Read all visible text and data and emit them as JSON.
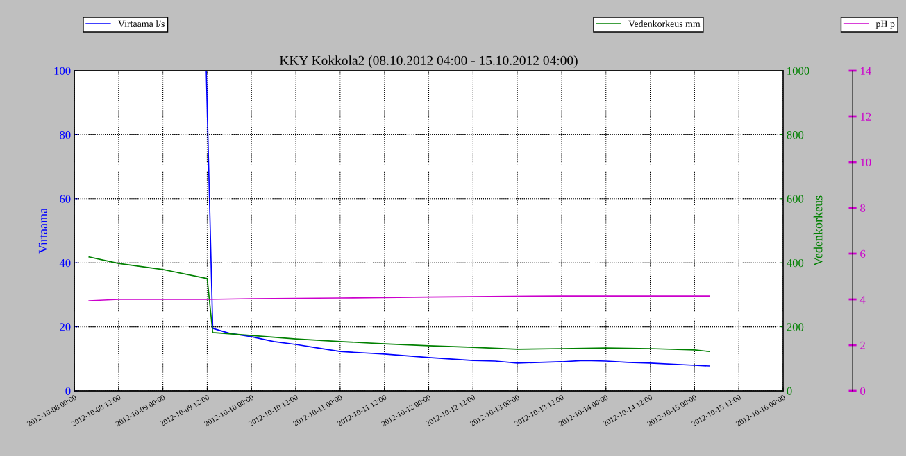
{
  "chart_data": {
    "type": "line",
    "title": "KKY Kokkola2 (08.10.2012 04:00 - 15.10.2012 04:00)",
    "ylabel": "Virtaama",
    "y2label": "Vedenkorkeus",
    "xlim": [
      "2012-10-08T00:00",
      "2012-10-16T00:00"
    ],
    "xticks": [
      {
        "value": "2012-10-08T00:00",
        "label": "2012-10-08 00:00"
      },
      {
        "value": "2012-10-08T12:00",
        "label": "2012-10-08 12:00"
      },
      {
        "value": "2012-10-09T00:00",
        "label": "2012-10-09 00:00"
      },
      {
        "value": "2012-10-09T12:00",
        "label": "2012-10-09 12:00"
      },
      {
        "value": "2012-10-10T00:00",
        "label": "2012-10-10 00:00"
      },
      {
        "value": "2012-10-10T12:00",
        "label": "2012-10-10 12:00"
      },
      {
        "value": "2012-10-11T00:00",
        "label": "2012-10-11 00:00"
      },
      {
        "value": "2012-10-11T12:00",
        "label": "2012-10-11 12:00"
      },
      {
        "value": "2012-10-12T00:00",
        "label": "2012-10-12 00:00"
      },
      {
        "value": "2012-10-12T12:00",
        "label": "2012-10-12 12:00"
      },
      {
        "value": "2012-10-13T00:00",
        "label": "2012-10-13 00:00"
      },
      {
        "value": "2012-10-13T12:00",
        "label": "2012-10-13 12:00"
      },
      {
        "value": "2012-10-14T00:00",
        "label": "2012-10-14 00:00"
      },
      {
        "value": "2012-10-14T12:00",
        "label": "2012-10-14 12:00"
      },
      {
        "value": "2012-10-15T00:00",
        "label": "2012-10-15 00:00"
      },
      {
        "value": "2012-10-15T12:00",
        "label": "2012-10-15 12:00"
      },
      {
        "value": "2012-10-16T00:00",
        "label": "2012-10-16 00:00"
      }
    ],
    "ylim": [
      0,
      100
    ],
    "yticks": [
      0,
      20,
      40,
      60,
      80,
      100
    ],
    "y2lim": [
      0,
      1000
    ],
    "y2ticks": [
      0,
      200,
      400,
      600,
      800,
      1000
    ],
    "y3lim": [
      0,
      14
    ],
    "y3ticks": [
      0,
      2,
      4,
      6,
      8,
      10,
      12,
      14
    ],
    "grid": true,
    "legend": "top",
    "line_style": "solid",
    "series": [
      {
        "name": "Virtaama l/s",
        "color": "#0000ff",
        "axis": "y",
        "x": [
          "2012-10-09T11:45",
          "2012-10-09T13:30",
          "2012-10-09T18:00",
          "2012-10-10T00:00",
          "2012-10-10T06:00",
          "2012-10-10T12:00",
          "2012-10-10T18:00",
          "2012-10-11T00:00",
          "2012-10-11T12:00",
          "2012-10-12T00:00",
          "2012-10-12T12:00",
          "2012-10-12T18:00",
          "2012-10-13T00:00",
          "2012-10-13T12:00",
          "2012-10-13T18:00",
          "2012-10-14T00:00",
          "2012-10-14T06:00",
          "2012-10-14T12:00",
          "2012-10-15T00:00",
          "2012-10-15T04:00"
        ],
        "values": [
          100,
          19.5,
          18.0,
          16.9,
          15.4,
          14.5,
          13.4,
          12.3,
          11.5,
          10.4,
          9.5,
          9.3,
          8.7,
          9.1,
          9.5,
          9.3,
          8.9,
          8.7,
          8.0,
          7.8
        ]
      },
      {
        "name": "Vedenkorkeus mm",
        "color": "#008000",
        "axis": "y2",
        "x": [
          "2012-10-08T04:00",
          "2012-10-08T12:00",
          "2012-10-09T00:00",
          "2012-10-09T12:00",
          "2012-10-09T13:30",
          "2012-10-10T00:00",
          "2012-10-10T12:00",
          "2012-10-11T00:00",
          "2012-10-11T12:00",
          "2012-10-12T00:00",
          "2012-10-12T12:00",
          "2012-10-13T00:00",
          "2012-10-13T12:00",
          "2012-10-14T00:00",
          "2012-10-14T12:00",
          "2012-10-15T00:00",
          "2012-10-15T04:00"
        ],
        "values": [
          418,
          398,
          379,
          351,
          182,
          173,
          162,
          154,
          147,
          141,
          136,
          130,
          132,
          134,
          132,
          128,
          123
        ]
      },
      {
        "name": "pH p",
        "color": "#cc00cc",
        "axis": "y3",
        "x": [
          "2012-10-08T04:00",
          "2012-10-08T12:00",
          "2012-10-09T12:00",
          "2012-10-10T00:00",
          "2012-10-11T00:00",
          "2012-10-12T00:00",
          "2012-10-13T12:00",
          "2012-10-15T00:00",
          "2012-10-15T04:00"
        ],
        "values": [
          3.94,
          4.0,
          4.0,
          4.03,
          4.06,
          4.1,
          4.15,
          4.15,
          4.15
        ]
      }
    ]
  }
}
